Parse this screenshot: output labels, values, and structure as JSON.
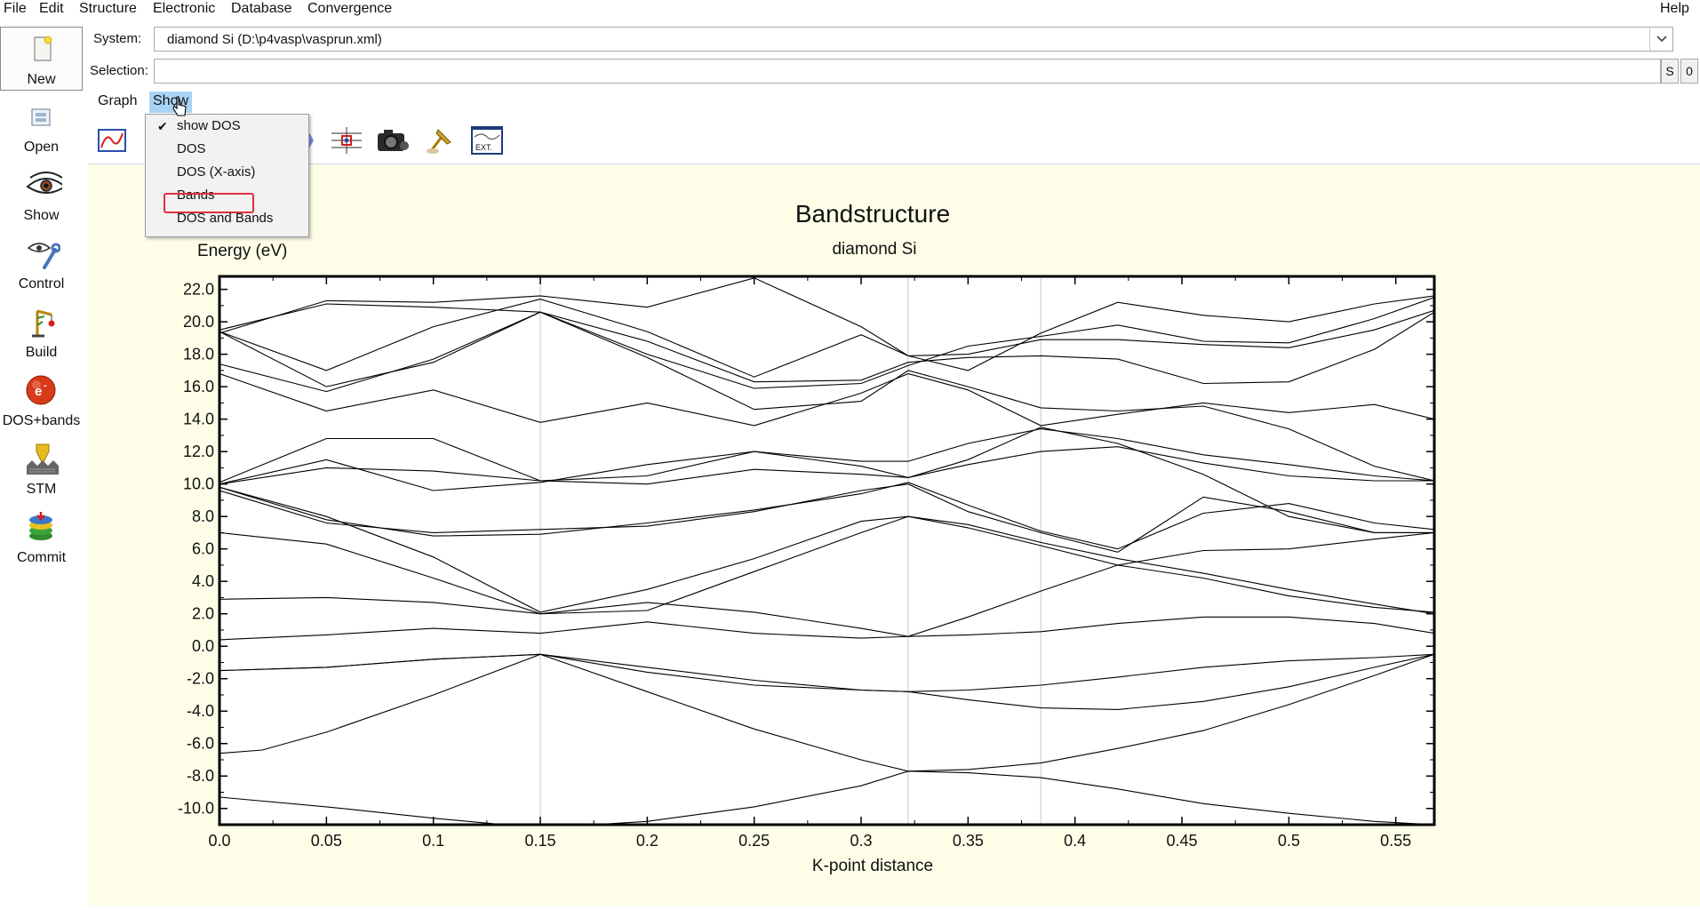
{
  "menubar": {
    "items": [
      "File",
      "Edit",
      "Structure",
      "Electronic",
      "Database",
      "Convergence"
    ],
    "help": "Help"
  },
  "left_toolbar": [
    {
      "label": "New",
      "icon": "new-document-icon"
    },
    {
      "label": "Open",
      "icon": "open-icon"
    },
    {
      "label": "Show",
      "icon": "eye-icon"
    },
    {
      "label": "Control",
      "icon": "control-tools-icon"
    },
    {
      "label": "Build",
      "icon": "build-crane-icon"
    },
    {
      "label": "DOS+bands",
      "icon": "electron-icon"
    },
    {
      "label": "STM",
      "icon": "stm-icon"
    },
    {
      "label": "Commit",
      "icon": "commit-icon"
    }
  ],
  "system": {
    "label": "System:",
    "value": "diamond Si (D:\\p4vasp\\vasprun.xml)"
  },
  "selection": {
    "label": "Selection:",
    "value": "",
    "buttons": [
      "S",
      "0"
    ]
  },
  "tabs": [
    "Graph",
    "Show"
  ],
  "active_tab": "Show",
  "show_menu": {
    "items": [
      {
        "label": "show DOS",
        "checked": true
      },
      {
        "label": "DOS",
        "checked": false
      },
      {
        "label": "DOS (X-axis)",
        "checked": false
      },
      {
        "label": "Bands",
        "checked": false,
        "highlighted": true
      },
      {
        "label": "DOS and Bands",
        "checked": false
      }
    ]
  },
  "toolbar_icons": [
    "graph-icon",
    "zoom-icon",
    "fit-icon",
    "camera-icon",
    "pin-icon",
    "ext-icon"
  ],
  "colors": {
    "plot_background": "#fefee8",
    "active_tab": "#a9d3f5",
    "highlight_box": "#e0303a"
  },
  "chart_data": {
    "type": "line",
    "title": "Bandstructure",
    "subtitle": "diamond Si",
    "xlabel": "K-point distance",
    "ylabel": "Energy (eV)",
    "xlim": [
      0.0,
      0.568
    ],
    "ylim": [
      -11.0,
      22.8
    ],
    "xticks": [
      "0.0",
      "0.05",
      "0.1",
      "0.15",
      "0.2",
      "0.25",
      "0.3",
      "0.35",
      "0.4",
      "0.45",
      "0.5",
      "0.55"
    ],
    "yticks": [
      "22.0",
      "20.0",
      "18.0",
      "16.0",
      "14.0",
      "12.0",
      "10.0",
      "8.0",
      "6.0",
      "4.0",
      "2.0",
      "0.0",
      "-2.0",
      "-4.0",
      "-6.0",
      "-8.0",
      "-10.0"
    ],
    "kpoint_dividers": [
      0.15,
      0.322,
      0.384
    ],
    "grid": false,
    "series": [
      {
        "x": [
          0.0,
          0.05,
          0.1,
          0.15,
          0.2,
          0.25,
          0.3,
          0.322,
          0.35,
          0.384,
          0.42,
          0.46,
          0.5,
          0.54,
          0.568
        ],
        "y": [
          -9.3,
          -9.9,
          -10.6,
          -11.2,
          -10.8,
          -9.9,
          -8.6,
          -7.7,
          -7.8,
          -8.1,
          -8.8,
          -9.7,
          -10.3,
          -10.8,
          -11.0
        ]
      },
      {
        "x": [
          0.0,
          0.02,
          0.05,
          0.1,
          0.15,
          0.2,
          0.25,
          0.3,
          0.322,
          0.35,
          0.384,
          0.42,
          0.46,
          0.5,
          0.54,
          0.568
        ],
        "y": [
          -6.6,
          -6.4,
          -5.3,
          -3.0,
          -0.5,
          -2.8,
          -5.1,
          -7.0,
          -7.7,
          -7.6,
          -7.2,
          -6.3,
          -5.2,
          -3.6,
          -1.8,
          -0.5
        ]
      },
      {
        "x": [
          0.0,
          0.05,
          0.1,
          0.15,
          0.2,
          0.25,
          0.3,
          0.322,
          0.35,
          0.384,
          0.42,
          0.46,
          0.5,
          0.54,
          0.568
        ],
        "y": [
          -1.5,
          -1.3,
          -0.8,
          -0.5,
          -1.6,
          -2.4,
          -2.7,
          -2.8,
          -3.3,
          -3.8,
          -3.9,
          -3.4,
          -2.5,
          -1.3,
          -0.5
        ]
      },
      {
        "x": [
          0.0,
          0.05,
          0.1,
          0.15,
          0.2,
          0.25,
          0.3,
          0.322,
          0.35,
          0.384,
          0.42,
          0.46,
          0.5,
          0.54,
          0.568
        ],
        "y": [
          -1.5,
          -1.3,
          -0.8,
          -0.5,
          -1.3,
          -2.1,
          -2.7,
          -2.8,
          -2.7,
          -2.4,
          -1.9,
          -1.3,
          -0.9,
          -0.7,
          -0.5
        ]
      },
      {
        "x": [
          0.0,
          0.05,
          0.1,
          0.15,
          0.2,
          0.25,
          0.3,
          0.322,
          0.35,
          0.384,
          0.42,
          0.46,
          0.5,
          0.54,
          0.568
        ],
        "y": [
          0.4,
          0.7,
          1.1,
          0.8,
          1.5,
          0.8,
          0.5,
          0.6,
          0.7,
          0.9,
          1.4,
          1.8,
          1.8,
          1.4,
          0.8
        ]
      },
      {
        "x": [
          0.0,
          0.05,
          0.1,
          0.15,
          0.2,
          0.25,
          0.3,
          0.322,
          0.35,
          0.384,
          0.42,
          0.46,
          0.5,
          0.54,
          0.568
        ],
        "y": [
          2.9,
          3.0,
          2.7,
          2.0,
          2.7,
          2.1,
          1.1,
          0.6,
          1.8,
          3.4,
          5.0,
          5.9,
          6.0,
          6.6,
          7.0
        ]
      },
      {
        "x": [
          0.0,
          0.05,
          0.1,
          0.15,
          0.2,
          0.25,
          0.3,
          0.322,
          0.35,
          0.384,
          0.42,
          0.46,
          0.5,
          0.54,
          0.568
        ],
        "y": [
          7.0,
          6.3,
          4.2,
          2.0,
          2.2,
          4.6,
          7.0,
          8.0,
          7.5,
          6.4,
          5.4,
          4.5,
          3.5,
          2.6,
          2.0
        ]
      },
      {
        "x": [
          0.0,
          0.05,
          0.1,
          0.15,
          0.2,
          0.25,
          0.3,
          0.322,
          0.35,
          0.384,
          0.42,
          0.46,
          0.5,
          0.54,
          0.568
        ],
        "y": [
          9.8,
          8.0,
          5.5,
          2.1,
          3.5,
          5.4,
          7.7,
          8.0,
          7.3,
          6.2,
          5.0,
          4.2,
          3.1,
          2.4,
          2.1
        ]
      },
      {
        "x": [
          0.0,
          0.05,
          0.1,
          0.15,
          0.2,
          0.25,
          0.3,
          0.322,
          0.35,
          0.384,
          0.42,
          0.46,
          0.5,
          0.54,
          0.568
        ],
        "y": [
          9.8,
          7.8,
          6.8,
          6.9,
          7.6,
          8.4,
          9.4,
          10.1,
          8.7,
          7.1,
          6.0,
          8.2,
          8.8,
          7.6,
          7.2
        ]
      },
      {
        "x": [
          0.0,
          0.05,
          0.1,
          0.15,
          0.2,
          0.25,
          0.3,
          0.322,
          0.35,
          0.384,
          0.42,
          0.46,
          0.5,
          0.54,
          0.568
        ],
        "y": [
          9.6,
          7.6,
          7.0,
          7.2,
          7.4,
          8.3,
          9.6,
          10.0,
          8.3,
          7.0,
          5.8,
          9.2,
          8.3,
          7.0,
          7.0
        ]
      },
      {
        "x": [
          0.0,
          0.05,
          0.1,
          0.15,
          0.2,
          0.25,
          0.3,
          0.322,
          0.35,
          0.384,
          0.42,
          0.46,
          0.5,
          0.54,
          0.568
        ],
        "y": [
          10.0,
          11.5,
          9.6,
          10.1,
          11.2,
          12.0,
          11.1,
          10.4,
          11.5,
          13.5,
          12.5,
          10.6,
          8.0,
          7.0,
          7.0
        ]
      },
      {
        "x": [
          0.0,
          0.05,
          0.1,
          0.15,
          0.2,
          0.25,
          0.3,
          0.322,
          0.35,
          0.384,
          0.42,
          0.46,
          0.5,
          0.54,
          0.568
        ],
        "y": [
          10.1,
          12.8,
          12.8,
          10.2,
          10.5,
          12.0,
          11.4,
          11.4,
          12.5,
          13.4,
          12.8,
          11.8,
          11.2,
          10.5,
          10.2
        ]
      },
      {
        "x": [
          0.0,
          0.05,
          0.1,
          0.15,
          0.2,
          0.25,
          0.3,
          0.322,
          0.35,
          0.384,
          0.42,
          0.46,
          0.5,
          0.54,
          0.568
        ],
        "y": [
          10.0,
          11.0,
          10.8,
          10.2,
          10.0,
          10.9,
          10.6,
          10.4,
          11.2,
          12.0,
          12.3,
          11.3,
          10.5,
          10.2,
          10.2
        ]
      },
      {
        "x": [
          0.0,
          0.05,
          0.1,
          0.15,
          0.2,
          0.25,
          0.3,
          0.322,
          0.35,
          0.384,
          0.42,
          0.46,
          0.5,
          0.54,
          0.568
        ],
        "y": [
          16.8,
          14.5,
          15.8,
          13.8,
          15.0,
          13.6,
          15.6,
          16.8,
          15.8,
          13.6,
          14.3,
          15.0,
          14.4,
          14.9,
          14.0
        ]
      },
      {
        "x": [
          0.0,
          0.05,
          0.1,
          0.15,
          0.2,
          0.25,
          0.3,
          0.322,
          0.35,
          0.384,
          0.42,
          0.46,
          0.5,
          0.54,
          0.568
        ],
        "y": [
          17.4,
          15.7,
          17.7,
          20.6,
          17.8,
          14.6,
          15.1,
          17.0,
          16.0,
          14.7,
          14.5,
          14.8,
          13.4,
          11.1,
          10.2
        ]
      },
      {
        "x": [
          0.0,
          0.05,
          0.1,
          0.15,
          0.2,
          0.25,
          0.3,
          0.322,
          0.35,
          0.384,
          0.42,
          0.46,
          0.5,
          0.54,
          0.568
        ],
        "y": [
          19.4,
          16.0,
          17.5,
          20.6,
          18.8,
          16.3,
          16.4,
          17.5,
          17.8,
          17.9,
          17.7,
          16.2,
          16.3,
          18.3,
          20.6
        ]
      },
      {
        "x": [
          0.0,
          0.05,
          0.1,
          0.15,
          0.2,
          0.25,
          0.3,
          0.322,
          0.35,
          0.384,
          0.42,
          0.46,
          0.5,
          0.54,
          0.568
        ],
        "y": [
          19.5,
          21.1,
          20.9,
          20.6,
          18.0,
          15.9,
          16.2,
          17.3,
          18.5,
          19.1,
          19.8,
          18.8,
          18.7,
          20.2,
          21.5
        ]
      },
      {
        "x": [
          0.0,
          0.05,
          0.1,
          0.15,
          0.2,
          0.25,
          0.3,
          0.322,
          0.35,
          0.384,
          0.42,
          0.46,
          0.5,
          0.54,
          0.568
        ],
        "y": [
          19.3,
          21.3,
          21.2,
          21.6,
          20.9,
          22.7,
          19.7,
          17.9,
          17.0,
          19.3,
          21.2,
          20.4,
          20.0,
          21.1,
          21.6
        ]
      },
      {
        "x": [
          0.0,
          0.05,
          0.1,
          0.15,
          0.2,
          0.25,
          0.3,
          0.322,
          0.35,
          0.384,
          0.42,
          0.46,
          0.5,
          0.54,
          0.568
        ],
        "y": [
          19.4,
          17.0,
          19.7,
          21.4,
          19.4,
          16.6,
          19.2,
          17.9,
          18.0,
          18.9,
          18.9,
          18.6,
          18.4,
          19.5,
          20.7
        ]
      }
    ]
  }
}
